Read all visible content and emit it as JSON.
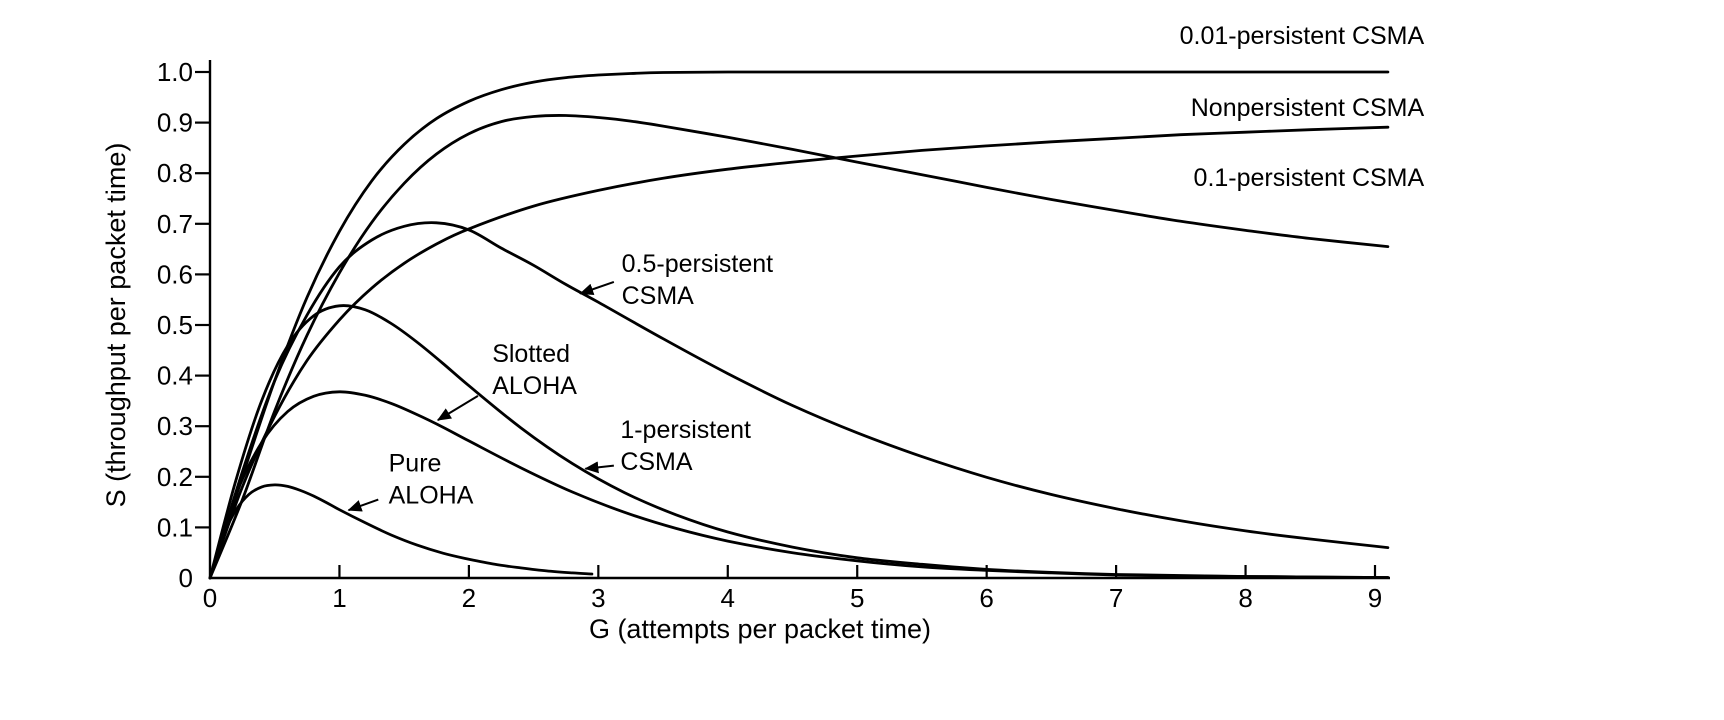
{
  "page": {
    "background": "#ffffff",
    "text_color": "#000000"
  },
  "chart_data": {
    "type": "line",
    "title": "",
    "xlabel": "G (attempts per packet time)",
    "ylabel": "S (throughput per packet time)",
    "xlim": [
      0,
      9
    ],
    "ylim": [
      0,
      1.0
    ],
    "grid": false,
    "legend_position": "inline-annotations",
    "line_color": "#000000",
    "x_ticks": [
      0,
      1,
      2,
      3,
      4,
      5,
      6,
      7,
      8,
      9
    ],
    "x_tick_labels": [
      "0",
      "1",
      "2",
      "3",
      "4",
      "5",
      "6",
      "7",
      "8",
      "9"
    ],
    "y_ticks": [
      0,
      0.1,
      0.2,
      0.3,
      0.4,
      0.5,
      0.6,
      0.7,
      0.8,
      0.9,
      1.0
    ],
    "y_tick_labels": [
      "0",
      "0.1",
      "0.2",
      "0.3",
      "0.4",
      "0.5",
      "0.6",
      "0.7",
      "0.8",
      "0.9",
      "1.0"
    ],
    "series": [
      {
        "name": "0.01-persistent CSMA",
        "points": [
          [
            0,
            0
          ],
          [
            0.25,
            0.2
          ],
          [
            0.5,
            0.39
          ],
          [
            0.75,
            0.555
          ],
          [
            1,
            0.685
          ],
          [
            1.25,
            0.785
          ],
          [
            1.5,
            0.857
          ],
          [
            1.75,
            0.908
          ],
          [
            2,
            0.942
          ],
          [
            2.25,
            0.965
          ],
          [
            2.5,
            0.98
          ],
          [
            2.75,
            0.989
          ],
          [
            3,
            0.994
          ],
          [
            3.25,
            0.997
          ],
          [
            3.5,
            0.999
          ],
          [
            4,
            1.0
          ],
          [
            5,
            1.0
          ],
          [
            6,
            1.0
          ],
          [
            7,
            1.0
          ],
          [
            8,
            1.0
          ],
          [
            9.1,
            1.0
          ]
        ]
      },
      {
        "name": "Nonpersistent CSMA",
        "points": [
          [
            0,
            0
          ],
          [
            0.25,
            0.18
          ],
          [
            0.5,
            0.32
          ],
          [
            0.75,
            0.43
          ],
          [
            1,
            0.51
          ],
          [
            1.25,
            0.573
          ],
          [
            1.5,
            0.622
          ],
          [
            1.75,
            0.66
          ],
          [
            2,
            0.69
          ],
          [
            2.5,
            0.735
          ],
          [
            3,
            0.766
          ],
          [
            3.5,
            0.79
          ],
          [
            4,
            0.808
          ],
          [
            4.5,
            0.822
          ],
          [
            5,
            0.834
          ],
          [
            5.5,
            0.845
          ],
          [
            6,
            0.854
          ],
          [
            6.5,
            0.862
          ],
          [
            7,
            0.869
          ],
          [
            7.5,
            0.876
          ],
          [
            8,
            0.881
          ],
          [
            8.5,
            0.886
          ],
          [
            9.1,
            0.891
          ]
        ]
      },
      {
        "name": "0.1-persistent CSMA",
        "points": [
          [
            0,
            0
          ],
          [
            0.25,
            0.155
          ],
          [
            0.5,
            0.33
          ],
          [
            0.75,
            0.48
          ],
          [
            1,
            0.603
          ],
          [
            1.25,
            0.703
          ],
          [
            1.5,
            0.78
          ],
          [
            1.75,
            0.838
          ],
          [
            2,
            0.878
          ],
          [
            2.25,
            0.902
          ],
          [
            2.5,
            0.912
          ],
          [
            2.75,
            0.914
          ],
          [
            3,
            0.91
          ],
          [
            3.25,
            0.903
          ],
          [
            3.5,
            0.893
          ],
          [
            4,
            0.871
          ],
          [
            4.5,
            0.847
          ],
          [
            5,
            0.822
          ],
          [
            5.5,
            0.797
          ],
          [
            6,
            0.772
          ],
          [
            6.5,
            0.748
          ],
          [
            7,
            0.726
          ],
          [
            7.5,
            0.705
          ],
          [
            8,
            0.687
          ],
          [
            8.5,
            0.671
          ],
          [
            9.1,
            0.655
          ]
        ]
      },
      {
        "name": "0.5-persistent CSMA",
        "points": [
          [
            0,
            0
          ],
          [
            0.25,
            0.21
          ],
          [
            0.5,
            0.39
          ],
          [
            0.75,
            0.52
          ],
          [
            1,
            0.615
          ],
          [
            1.25,
            0.668
          ],
          [
            1.5,
            0.695
          ],
          [
            1.75,
            0.702
          ],
          [
            2,
            0.688
          ],
          [
            2.25,
            0.652
          ],
          [
            2.5,
            0.618
          ],
          [
            2.75,
            0.58
          ],
          [
            3,
            0.545
          ],
          [
            3.5,
            0.473
          ],
          [
            4,
            0.404
          ],
          [
            4.5,
            0.341
          ],
          [
            5,
            0.287
          ],
          [
            5.5,
            0.24
          ],
          [
            6,
            0.199
          ],
          [
            6.5,
            0.165
          ],
          [
            7,
            0.137
          ],
          [
            7.5,
            0.113
          ],
          [
            8,
            0.093
          ],
          [
            8.5,
            0.077
          ],
          [
            9.1,
            0.06
          ]
        ]
      },
      {
        "name": "1-persistent CSMA",
        "points": [
          [
            0,
            0
          ],
          [
            0.2,
            0.193
          ],
          [
            0.4,
            0.351
          ],
          [
            0.6,
            0.459
          ],
          [
            0.8,
            0.518
          ],
          [
            1,
            0.538
          ],
          [
            1.2,
            0.53
          ],
          [
            1.4,
            0.503
          ],
          [
            1.6,
            0.466
          ],
          [
            1.8,
            0.424
          ],
          [
            2,
            0.38
          ],
          [
            2.4,
            0.297
          ],
          [
            2.8,
            0.226
          ],
          [
            3.2,
            0.169
          ],
          [
            3.6,
            0.125
          ],
          [
            4,
            0.091
          ],
          [
            4.5,
            0.061
          ],
          [
            5,
            0.04
          ],
          [
            5.5,
            0.027
          ],
          [
            6,
            0.017
          ],
          [
            6.5,
            0.011
          ],
          [
            7,
            0.007
          ],
          [
            7.5,
            0.005
          ],
          [
            8,
            0.003
          ],
          [
            8.5,
            0.002
          ],
          [
            9.1,
            0.001
          ]
        ]
      },
      {
        "name": "Slotted ALOHA",
        "points": [
          [
            0,
            0
          ],
          [
            0.2,
            0.164
          ],
          [
            0.4,
            0.268
          ],
          [
            0.6,
            0.329
          ],
          [
            0.8,
            0.359
          ],
          [
            1,
            0.368
          ],
          [
            1.2,
            0.361
          ],
          [
            1.4,
            0.345
          ],
          [
            1.6,
            0.323
          ],
          [
            1.8,
            0.298
          ],
          [
            2,
            0.271
          ],
          [
            2.4,
            0.218
          ],
          [
            2.8,
            0.17
          ],
          [
            3.2,
            0.13
          ],
          [
            3.6,
            0.098
          ],
          [
            4,
            0.073
          ],
          [
            4.5,
            0.05
          ],
          [
            5,
            0.034
          ],
          [
            5.5,
            0.022
          ],
          [
            6,
            0.015
          ],
          [
            6.5,
            0.01
          ],
          [
            7,
            0.006
          ],
          [
            7.5,
            0.004
          ],
          [
            8,
            0.003
          ],
          [
            8.5,
            0.002
          ],
          [
            9.1,
            0.001
          ]
        ]
      },
      {
        "name": "Pure ALOHA",
        "points": [
          [
            0,
            0
          ],
          [
            0.1,
            0.082
          ],
          [
            0.2,
            0.134
          ],
          [
            0.3,
            0.165
          ],
          [
            0.4,
            0.18
          ],
          [
            0.5,
            0.184
          ],
          [
            0.6,
            0.181
          ],
          [
            0.7,
            0.173
          ],
          [
            0.8,
            0.162
          ],
          [
            0.9,
            0.149
          ],
          [
            1,
            0.135
          ],
          [
            1.2,
            0.109
          ],
          [
            1.4,
            0.085
          ],
          [
            1.6,
            0.065
          ],
          [
            1.8,
            0.049
          ],
          [
            2,
            0.037
          ],
          [
            2.2,
            0.027
          ],
          [
            2.4,
            0.02
          ],
          [
            2.6,
            0.014
          ],
          [
            2.8,
            0.01
          ],
          [
            2.95,
            0.008
          ]
        ]
      }
    ],
    "annotations": [
      {
        "id": "label-0-01-persistent-csma",
        "lines": [
          "0.01-persistent CSMA"
        ],
        "x": 9.38,
        "y": 1.055,
        "anchor": "end"
      },
      {
        "id": "label-nonpersistent-csma",
        "lines": [
          "Nonpersistent CSMA"
        ],
        "x": 9.38,
        "y": 0.913,
        "anchor": "end"
      },
      {
        "id": "label-0-1-persistent-csma",
        "lines": [
          "0.1-persistent CSMA"
        ],
        "x": 9.38,
        "y": 0.775,
        "anchor": "end"
      },
      {
        "id": "label-0-5-persistent-csma",
        "lines": [
          "0.5-persistent",
          "CSMA"
        ],
        "x": 3.18,
        "y": 0.605,
        "anchor": "start",
        "arrow": {
          "x1": 3.12,
          "y1": 0.585,
          "x2": 2.86,
          "y2": 0.562
        }
      },
      {
        "id": "label-slotted-aloha",
        "lines": [
          "Slotted",
          "ALOHA"
        ],
        "x": 2.18,
        "y": 0.427,
        "anchor": "start",
        "arrow": {
          "x1": 2.07,
          "y1": 0.36,
          "x2": 1.76,
          "y2": 0.312
        }
      },
      {
        "id": "label-1-persistent-csma",
        "lines": [
          "1-persistent",
          "CSMA"
        ],
        "x": 3.17,
        "y": 0.277,
        "anchor": "start",
        "arrow": {
          "x1": 3.12,
          "y1": 0.222,
          "x2": 2.9,
          "y2": 0.216
        }
      },
      {
        "id": "label-pure-aloha",
        "lines": [
          "Pure",
          "ALOHA"
        ],
        "x": 1.38,
        "y": 0.21,
        "anchor": "start",
        "arrow": {
          "x1": 1.3,
          "y1": 0.155,
          "x2": 1.07,
          "y2": 0.134
        }
      }
    ]
  }
}
